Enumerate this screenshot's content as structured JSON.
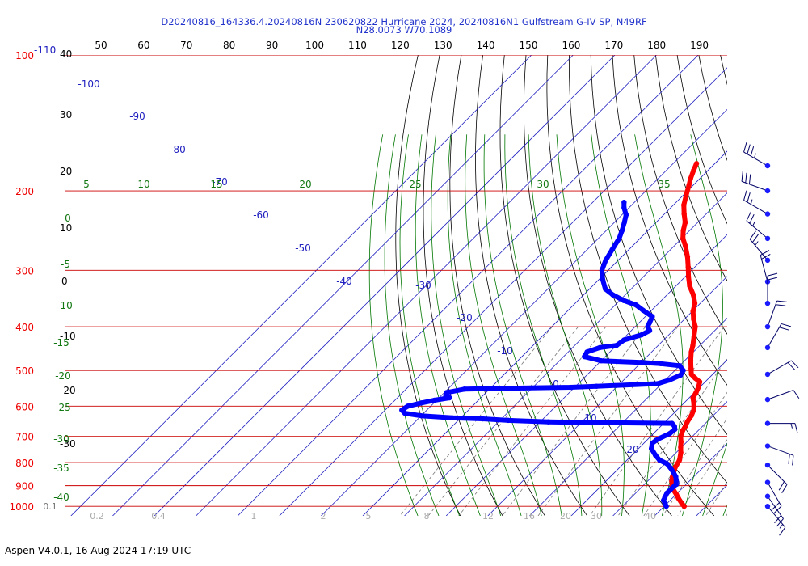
{
  "header": {
    "title_line1": "D20240816_164336.4.20240816N 230620822 Hurricane 2024, 20240816N1 Gulfstream G-IV SP, N49RF",
    "title_line2": "N28.0073 W70.1089"
  },
  "footer": {
    "text": "Aspen V4.0.1, 16 Aug 2024  17:19 UTC"
  },
  "colors": {
    "temperature": "#ff0000",
    "dewpoint": "#0000ff",
    "isobars": "#cc0000",
    "isotherms": "#2020c0",
    "dry_adiabats": "#000000",
    "moist_adiabats": "#007700",
    "mixing_ratio": "#777777",
    "top_scale": "#000000",
    "label_blue": "#2020c0",
    "label_green": "#117711",
    "label_red": "#ee0000"
  },
  "chart_data": {
    "type": "skew-t",
    "pressure_axis": {
      "label_left": "100",
      "ticks": [
        "100",
        "200",
        "300",
        "400",
        "500",
        "600",
        "700",
        "800",
        "900",
        "1000"
      ]
    },
    "top_scale_ticks": [
      "50",
      "60",
      "70",
      "80",
      "90",
      "100",
      "110",
      "120",
      "130",
      "140",
      "150",
      "160",
      "170",
      "180",
      "190"
    ],
    "isotherm_labels": [
      "-110",
      "-100",
      "-90",
      "-80",
      "-70",
      "-60",
      "-50",
      "-40",
      "-30",
      "-20",
      "-10",
      "0",
      "10",
      "20",
      "30"
    ],
    "dry_adiabat_labels": [
      "40",
      "30",
      "20",
      "10",
      "0",
      "-10",
      "-20",
      "-30"
    ],
    "moist_adiabat_labels": [
      "5",
      "10",
      "15",
      "20",
      "25",
      "30",
      "35"
    ],
    "moist_adiabat_left_labels": [
      "0",
      "-5",
      "-10",
      "-15",
      "-20",
      "-25",
      "-30",
      "-35",
      "-40"
    ],
    "mixing_ratio_labels": [
      "0.1",
      "0.2",
      "0.4",
      "1",
      "2",
      "5",
      "8",
      "12",
      "16",
      "20",
      "30",
      "40"
    ],
    "temperature_profile": [
      {
        "p": 1000,
        "t": 24.8
      },
      {
        "p": 985,
        "t": 23.5
      },
      {
        "p": 960,
        "t": 21.5
      },
      {
        "p": 940,
        "t": 20.0
      },
      {
        "p": 920,
        "t": 18.3
      },
      {
        "p": 900,
        "t": 17.0
      },
      {
        "p": 880,
        "t": 15.8
      },
      {
        "p": 860,
        "t": 14.9
      },
      {
        "p": 820,
        "t": 13.3
      },
      {
        "p": 790,
        "t": 12.6
      },
      {
        "p": 760,
        "t": 11.1
      },
      {
        "p": 740,
        "t": 9.8
      },
      {
        "p": 720,
        "t": 8.6
      },
      {
        "p": 700,
        "t": 7.2
      },
      {
        "p": 680,
        "t": 6.3
      },
      {
        "p": 665,
        "t": 5.9
      },
      {
        "p": 650,
        "t": 5.3
      },
      {
        "p": 630,
        "t": 4.8
      },
      {
        "p": 610,
        "t": 3.9
      },
      {
        "p": 590,
        "t": 2.3
      },
      {
        "p": 575,
        "t": 0.9
      },
      {
        "p": 560,
        "t": 0.4
      },
      {
        "p": 545,
        "t": -0.3
      },
      {
        "p": 530,
        "t": -1.3
      },
      {
        "p": 520,
        "t": -3.3
      },
      {
        "p": 510,
        "t": -5.1
      },
      {
        "p": 495,
        "t": -6.6
      },
      {
        "p": 475,
        "t": -8.6
      },
      {
        "p": 455,
        "t": -10.5
      },
      {
        "p": 440,
        "t": -11.7
      },
      {
        "p": 420,
        "t": -13.6
      },
      {
        "p": 400,
        "t": -15.6
      },
      {
        "p": 385,
        "t": -17.8
      },
      {
        "p": 370,
        "t": -19.8
      },
      {
        "p": 355,
        "t": -21.3
      },
      {
        "p": 340,
        "t": -23.7
      },
      {
        "p": 325,
        "t": -26.7
      },
      {
        "p": 310,
        "t": -29.2
      },
      {
        "p": 295,
        "t": -31.6
      },
      {
        "p": 280,
        "t": -34.2
      },
      {
        "p": 265,
        "t": -37.3
      },
      {
        "p": 255,
        "t": -39.7
      },
      {
        "p": 245,
        "t": -41.5
      },
      {
        "p": 235,
        "t": -43.0
      },
      {
        "p": 225,
        "t": -45.3
      },
      {
        "p": 215,
        "t": -47.5
      },
      {
        "p": 205,
        "t": -49.2
      },
      {
        "p": 195,
        "t": -50.9
      },
      {
        "p": 188,
        "t": -52.2
      },
      {
        "p": 180,
        "t": -53.5
      },
      {
        "p": 174,
        "t": -54.4
      }
    ],
    "dewpoint_profile": [
      {
        "p": 1000,
        "t": 20.5
      },
      {
        "p": 985,
        "t": 19.5
      },
      {
        "p": 970,
        "t": 18.4
      },
      {
        "p": 955,
        "t": 18.0
      },
      {
        "p": 935,
        "t": 17.5
      },
      {
        "p": 915,
        "t": 17.5
      },
      {
        "p": 895,
        "t": 17.6
      },
      {
        "p": 875,
        "t": 16.6
      },
      {
        "p": 860,
        "t": 15.7
      },
      {
        "p": 840,
        "t": 14.0
      },
      {
        "p": 820,
        "t": 12.1
      },
      {
        "p": 805,
        "t": 10.5
      },
      {
        "p": 790,
        "t": 7.8
      },
      {
        "p": 770,
        "t": 5.6
      },
      {
        "p": 745,
        "t": 3.1
      },
      {
        "p": 725,
        "t": 2.0
      },
      {
        "p": 710,
        "t": 2.4
      },
      {
        "p": 690,
        "t": 3.9
      },
      {
        "p": 675,
        "t": 4.1
      },
      {
        "p": 665,
        "t": 3.3
      },
      {
        "p": 655,
        "t": 2.0
      },
      {
        "p": 652,
        "t": -19.0
      },
      {
        "p": 651,
        "t": -23.5
      },
      {
        "p": 650,
        "t": -28.0
      },
      {
        "p": 645,
        "t": -38.0
      },
      {
        "p": 640,
        "t": -44.5
      },
      {
        "p": 637,
        "t": -52.0
      },
      {
        "p": 630,
        "t": -60.0
      },
      {
        "p": 622,
        "t": -64.5
      },
      {
        "p": 612,
        "t": -66.0
      },
      {
        "p": 600,
        "t": -65.5
      },
      {
        "p": 590,
        "t": -63.0
      },
      {
        "p": 582,
        "t": -60.5
      },
      {
        "p": 575,
        "t": -57.5
      },
      {
        "p": 570,
        "t": -58.8
      },
      {
        "p": 560,
        "t": -59.5
      },
      {
        "p": 550,
        "t": -56.0
      },
      {
        "p": 547,
        "t": -42.0
      },
      {
        "p": 545,
        "t": -31.0
      },
      {
        "p": 542,
        "t": -25.0
      },
      {
        "p": 535,
        "t": -11.0
      },
      {
        "p": 525,
        "t": -9.0
      },
      {
        "p": 512,
        "t": -7.5
      },
      {
        "p": 500,
        "t": -8.0
      },
      {
        "p": 488,
        "t": -10.0
      },
      {
        "p": 483,
        "t": -15.0
      },
      {
        "p": 480,
        "t": -20.0
      },
      {
        "p": 476,
        "t": -30.0
      },
      {
        "p": 466,
        "t": -35.0
      },
      {
        "p": 455,
        "t": -35.5
      },
      {
        "p": 445,
        "t": -33.5
      },
      {
        "p": 440,
        "t": -30.0
      },
      {
        "p": 428,
        "t": -29.5
      },
      {
        "p": 417,
        "t": -26.5
      },
      {
        "p": 408,
        "t": -25.6
      },
      {
        "p": 400,
        "t": -27.0
      },
      {
        "p": 392,
        "t": -27.5
      },
      {
        "p": 380,
        "t": -28.3
      },
      {
        "p": 368,
        "t": -32.0
      },
      {
        "p": 358,
        "t": -35.0
      },
      {
        "p": 350,
        "t": -39.0
      },
      {
        "p": 340,
        "t": -43.0
      },
      {
        "p": 330,
        "t": -46.2
      },
      {
        "p": 315,
        "t": -49.0
      },
      {
        "p": 300,
        "t": -51.5
      },
      {
        "p": 285,
        "t": -53.0
      },
      {
        "p": 270,
        "t": -54.0
      },
      {
        "p": 255,
        "t": -55.0
      },
      {
        "p": 245,
        "t": -56.2
      },
      {
        "p": 235,
        "t": -57.6
      },
      {
        "p": 226,
        "t": -59.0
      },
      {
        "p": 218,
        "t": -61.2
      },
      {
        "p": 212,
        "t": -62.5
      }
    ],
    "dewpoint_dropouts": [
      {
        "p": 650,
        "t": -25.0
      },
      {
        "p": 651,
        "t": -21.0
      },
      {
        "p": 652,
        "t": -17.0
      }
    ],
    "wind_barbs": [
      {
        "p": 176,
        "dir": 300,
        "spd": 35
      },
      {
        "p": 200,
        "dir": 290,
        "spd": 30
      },
      {
        "p": 225,
        "dir": 300,
        "spd": 25
      },
      {
        "p": 255,
        "dir": 310,
        "spd": 25
      },
      {
        "p": 285,
        "dir": 320,
        "spd": 25
      },
      {
        "p": 318,
        "dir": 345,
        "spd": 20
      },
      {
        "p": 355,
        "dir": 0,
        "spd": 20
      },
      {
        "p": 400,
        "dir": 20,
        "spd": 20
      },
      {
        "p": 445,
        "dir": 30,
        "spd": 20
      },
      {
        "p": 510,
        "dir": 60,
        "spd": 20
      },
      {
        "p": 580,
        "dir": 70,
        "spd": 10
      },
      {
        "p": 655,
        "dir": 90,
        "spd": 15
      },
      {
        "p": 735,
        "dir": 110,
        "spd": 20
      },
      {
        "p": 810,
        "dir": 135,
        "spd": 20
      },
      {
        "p": 885,
        "dir": 150,
        "spd": 20
      },
      {
        "p": 950,
        "dir": 145,
        "spd": 20
      },
      {
        "p": 1000,
        "dir": 140,
        "spd": 15
      }
    ]
  }
}
